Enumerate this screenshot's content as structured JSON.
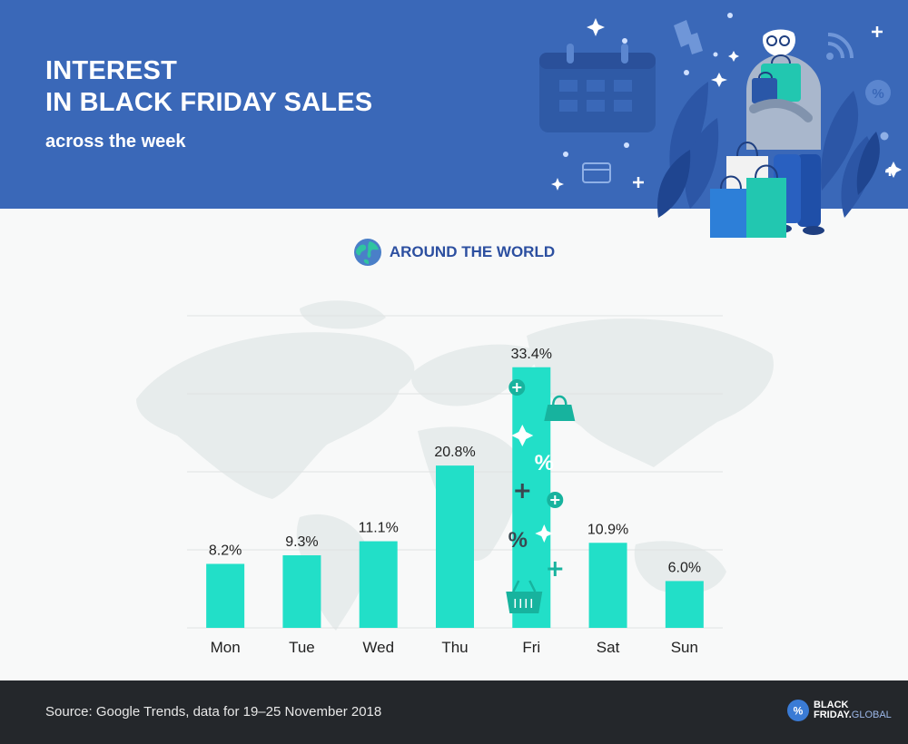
{
  "header": {
    "title_line1": "INTEREST",
    "title_line2": "IN BLACK FRIDAY SALES",
    "subtitle": "across the week"
  },
  "section": {
    "title": "AROUND THE WORLD",
    "icon": "globe-icon"
  },
  "chart_data": {
    "type": "bar",
    "categories": [
      "Mon",
      "Tue",
      "Wed",
      "Thu",
      "Fri",
      "Sat",
      "Sun"
    ],
    "values": [
      8.2,
      9.3,
      11.1,
      20.8,
      33.4,
      10.9,
      6.0
    ],
    "value_labels": [
      "8.2%",
      "9.3%",
      "11.1%",
      "20.8%",
      "33.4%",
      "10.9%",
      "6.0%"
    ],
    "ylim": [
      0,
      40
    ],
    "grid": true,
    "legend": "none",
    "bar_color": "#22dfc8"
  },
  "footer": {
    "source": "Source: Google Trends, data for 19–25 November 2018",
    "logo_line1": "BLACK",
    "logo_line2_a": "FRIDAY.",
    "logo_line2_b": "GLOBAL",
    "logo_symbol": "%"
  },
  "colors": {
    "header_bg": "#3a68b8",
    "accent": "#22dfc8",
    "title_blue": "#2c4fa0",
    "footer_bg": "#24272b"
  }
}
